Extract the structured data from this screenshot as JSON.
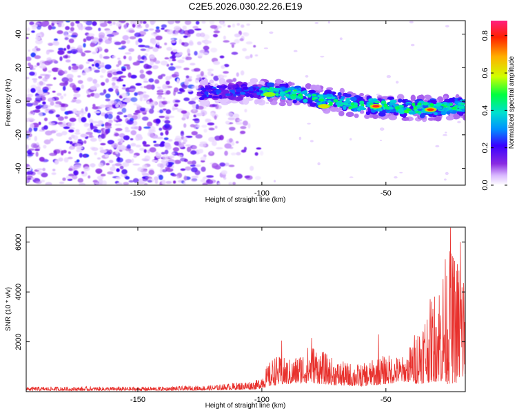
{
  "title": "C2E5.2026.030.22.26.E19",
  "chart_data": [
    {
      "type": "heatmap",
      "xlabel": "Height of straight line (km)",
      "ylabel": "Frequency (Hz)",
      "xlim": [
        -195,
        -18
      ],
      "ylim": [
        -50,
        48
      ],
      "xticks": [
        -150,
        -100,
        -50
      ],
      "yticks": [
        -40,
        -20,
        0,
        20,
        40
      ],
      "colorbar": {
        "label": "Normalized spectral amplitude",
        "range": [
          0,
          0.88
        ],
        "ticks": [
          0.0,
          0.2,
          0.4,
          0.6,
          0.8
        ],
        "colormap": "rainbow",
        "colors": [
          "#ffffff",
          "#d9b8ff",
          "#8a2be2",
          "#3a00ff",
          "#0090ff",
          "#00e0d0",
          "#00ff40",
          "#d0ff00",
          "#ffb000",
          "#ff2000",
          "#ff2080"
        ]
      },
      "noise_region": {
        "x_from": -195,
        "x_to": -100,
        "y_from": -50,
        "y_to": 48
      },
      "signal_track": [
        {
          "x": -125,
          "y": 5
        },
        {
          "x": -100,
          "y": 6
        },
        {
          "x": -85,
          "y": 4
        },
        {
          "x": -75,
          "y": 1
        },
        {
          "x": -62,
          "y": -2
        },
        {
          "x": -50,
          "y": -3
        },
        {
          "x": -40,
          "y": -4
        },
        {
          "x": -30,
          "y": -4
        },
        {
          "x": -20,
          "y": -3
        }
      ],
      "peaks": [
        {
          "x": -54,
          "y": -3,
          "amp": 0.82
        },
        {
          "x": -32,
          "y": -5,
          "amp": 0.78
        },
        {
          "x": -75,
          "y": -3,
          "amp": 0.62
        },
        {
          "x": -97,
          "y": 4,
          "amp": 0.55
        }
      ]
    },
    {
      "type": "line",
      "xlabel": "Height of straight line (km)",
      "ylabel": "SNR (10 * v/v)",
      "xlim": [
        -195,
        -18
      ],
      "ylim": [
        0,
        6600
      ],
      "xticks": [
        -150,
        -100,
        -50
      ],
      "yticks": [
        2000,
        4000,
        6000
      ],
      "color": "#e8302c",
      "envelope": [
        {
          "x": -195,
          "base": 40,
          "spread": 160
        },
        {
          "x": -140,
          "base": 40,
          "spread": 160
        },
        {
          "x": -120,
          "base": 60,
          "spread": 200
        },
        {
          "x": -102,
          "base": 90,
          "spread": 380
        },
        {
          "x": -95,
          "base": 250,
          "spread": 1200
        },
        {
          "x": -88,
          "base": 300,
          "spread": 1000
        },
        {
          "x": -80,
          "base": 350,
          "spread": 1600
        },
        {
          "x": -70,
          "base": 250,
          "spread": 1000
        },
        {
          "x": -60,
          "base": 200,
          "spread": 900
        },
        {
          "x": -50,
          "base": 300,
          "spread": 1200
        },
        {
          "x": -42,
          "base": 400,
          "spread": 1000
        },
        {
          "x": -38,
          "base": 300,
          "spread": 2200
        },
        {
          "x": -30,
          "base": 400,
          "spread": 3800
        },
        {
          "x": -25,
          "base": 300,
          "spread": 5500
        },
        {
          "x": -18,
          "base": 400,
          "spread": 5000
        }
      ],
      "peaks": [
        {
          "x": -92,
          "y": 2050
        },
        {
          "x": -80,
          "y": 2150
        },
        {
          "x": -53,
          "y": 2300
        },
        {
          "x": -24,
          "y": 6580
        },
        {
          "x": -20,
          "y": 6000
        }
      ]
    }
  ]
}
